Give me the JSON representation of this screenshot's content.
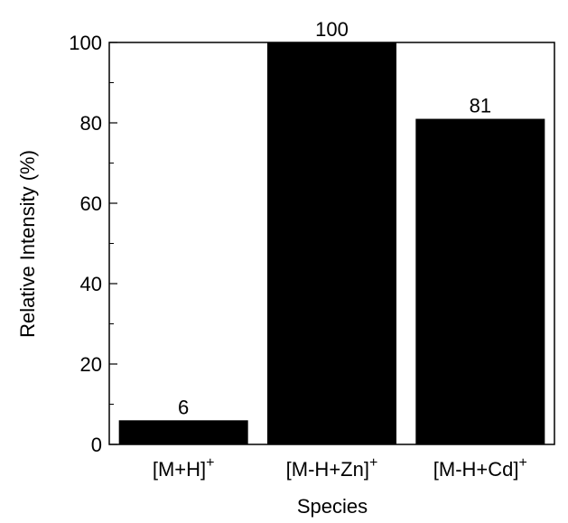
{
  "chart_data": {
    "type": "bar",
    "categories": [
      {
        "base": "[M+H]",
        "sup": "+"
      },
      {
        "base": "[M-H+Zn]",
        "sup": "+"
      },
      {
        "base": "[M-H+Cd]",
        "sup": "+"
      }
    ],
    "values": [
      6,
      100,
      81
    ],
    "data_labels": [
      "6",
      "100",
      "81"
    ],
    "xlabel": "Species",
    "ylabel": "Relative Intensity (%)",
    "ylim": [
      0,
      100
    ],
    "yticks": [
      0,
      20,
      40,
      60,
      80,
      100
    ],
    "ytick_labels": [
      "0",
      "20",
      "40",
      "60",
      "80",
      "100"
    ],
    "grid": false,
    "bar_color": "#000000"
  }
}
